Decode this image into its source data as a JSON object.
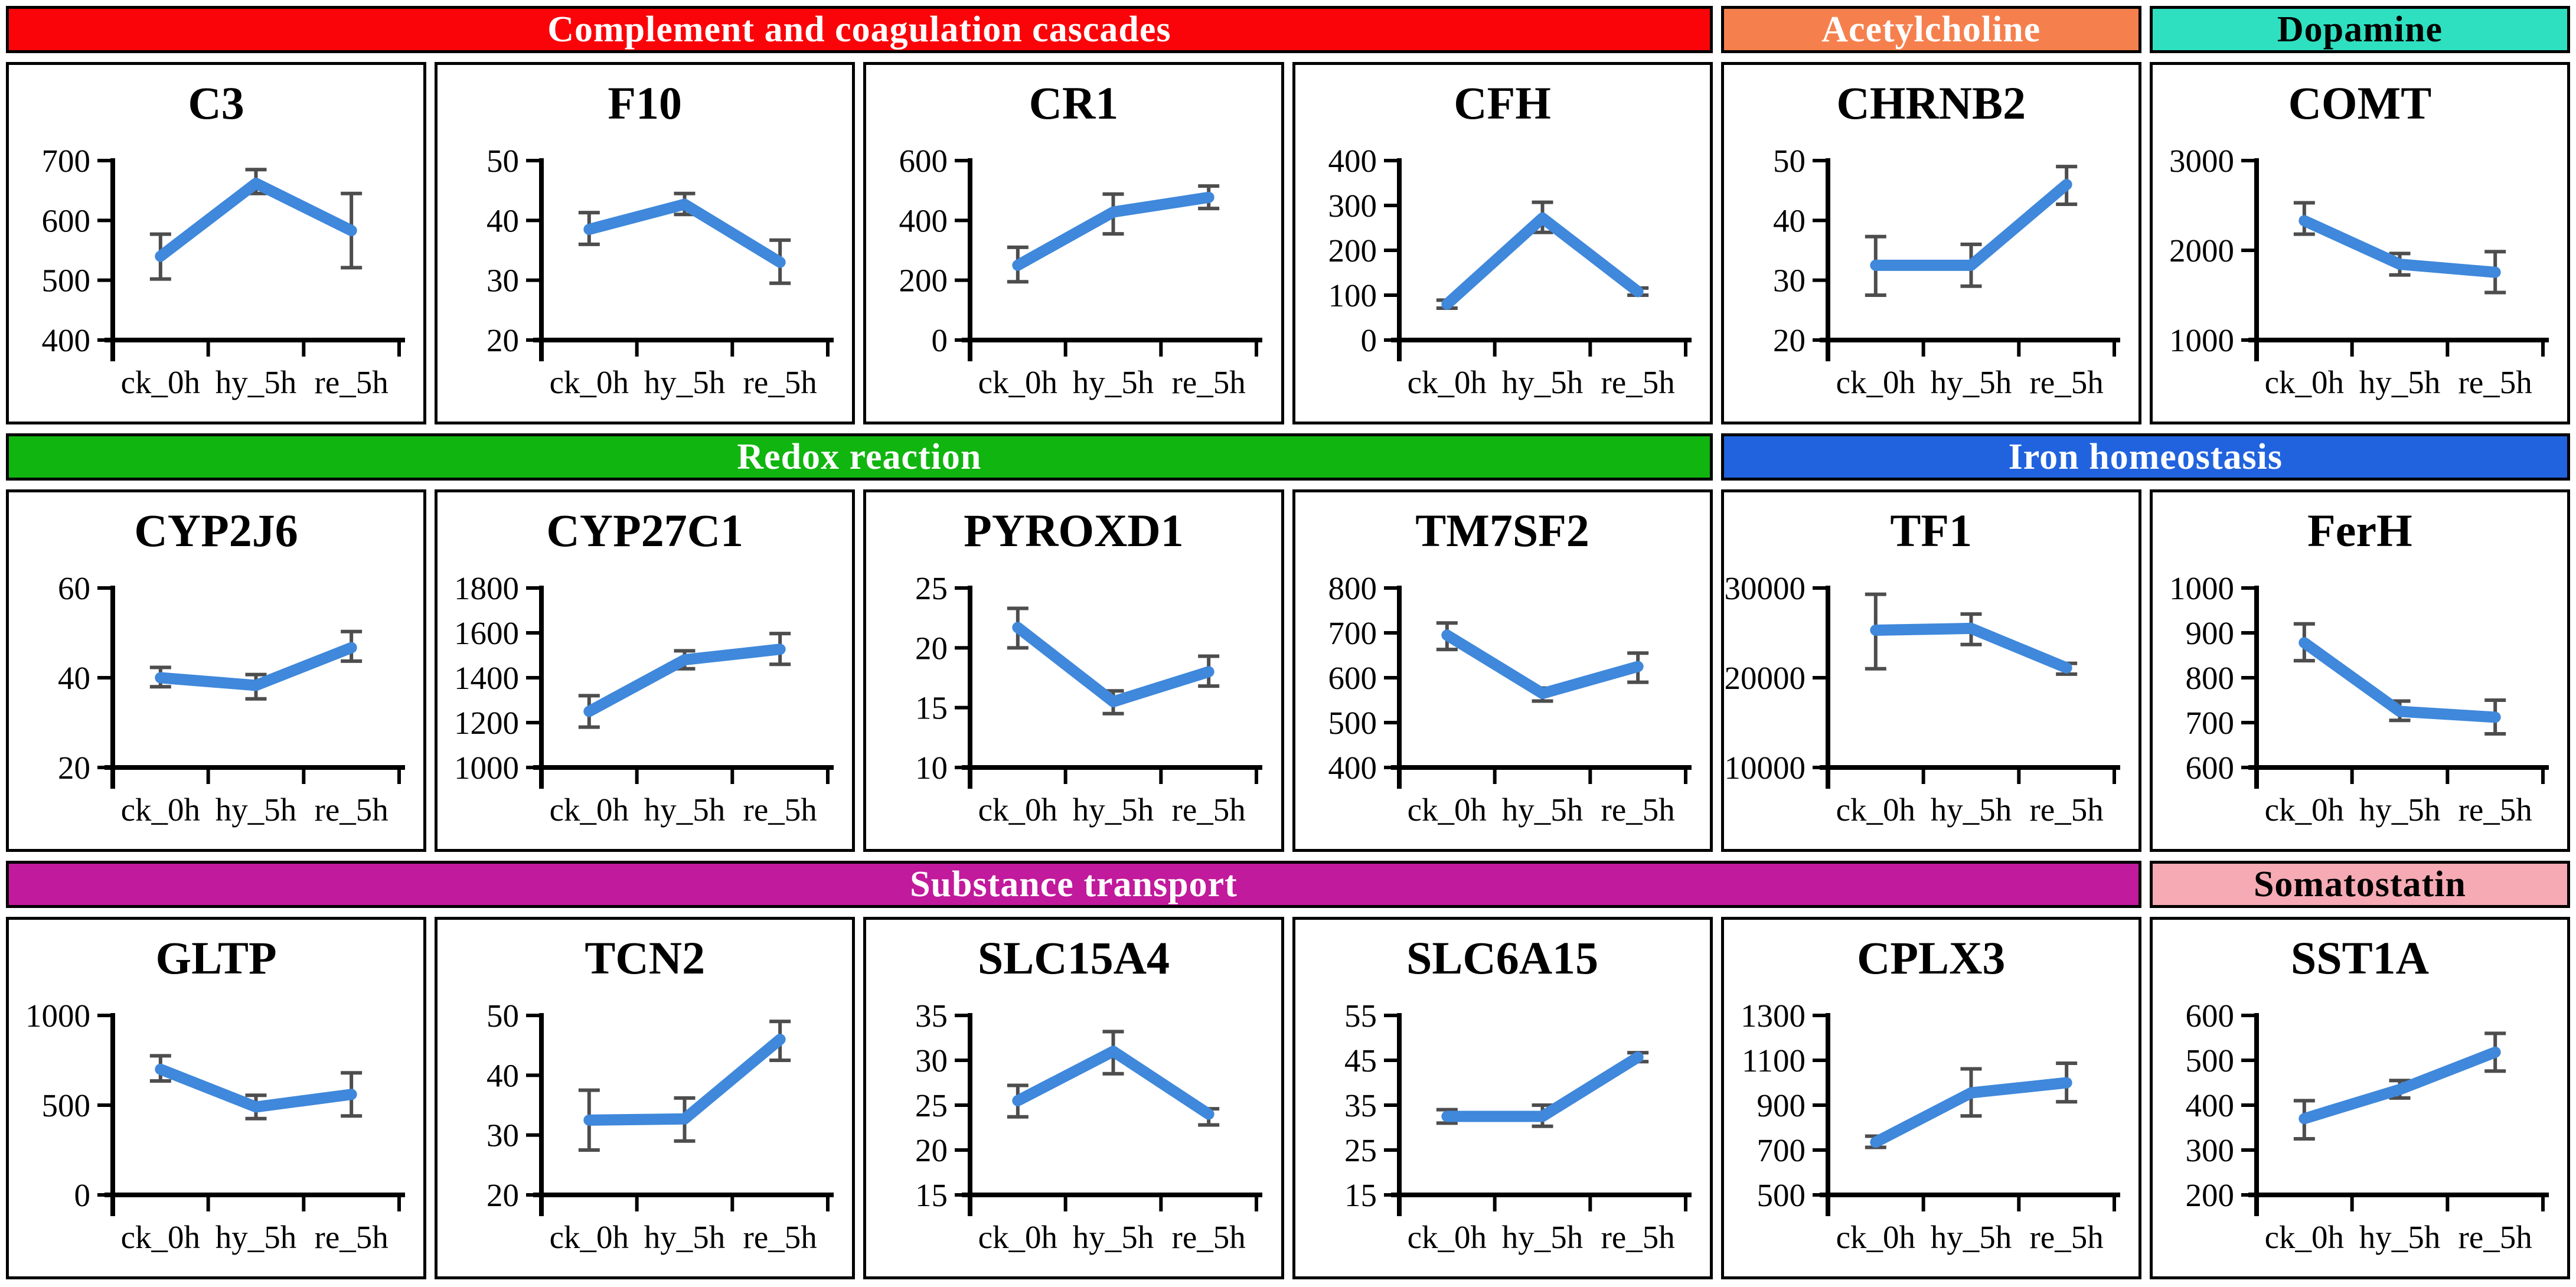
{
  "styles": {
    "background": "#ffffff",
    "line_color": "#3f88db",
    "error_bar_color": "#4d4d4d",
    "axis_color": "#000000",
    "chart_border_color": "#000000"
  },
  "sections": [
    {
      "header": [
        {
          "label": "Complement and coagulation cascades",
          "bg": "#fb0409",
          "text_color": "#ffffff",
          "span": 4
        },
        {
          "label": "Acetylcholine",
          "bg": "#f5804e",
          "text_color": "#ffffff",
          "span": 1
        },
        {
          "label": "Dopamine",
          "bg": "#2ee0c0",
          "text_color": "#000000",
          "span": 1
        }
      ],
      "charts": [
        0,
        1,
        2,
        3,
        4,
        5
      ]
    },
    {
      "header": [
        {
          "label": "Redox reaction",
          "bg": "#10b50f",
          "text_color": "#ffffff",
          "span": 4
        },
        {
          "label": "Iron homeostasis",
          "bg": "#2163de",
          "text_color": "#ffffff",
          "span": 2
        }
      ],
      "charts": [
        6,
        7,
        8,
        9,
        10,
        11
      ]
    },
    {
      "header": [
        {
          "label": "Substance transport",
          "bg": "#c11a9c",
          "text_color": "#ffffff",
          "span": 5
        },
        {
          "label": "Somatostatin",
          "bg": "#f6aab4",
          "text_color": "#000000",
          "span": 1
        }
      ],
      "charts": [
        12,
        13,
        14,
        15,
        16,
        17
      ]
    }
  ],
  "chart_data": [
    {
      "type": "line",
      "title": "C3",
      "xlabel": "",
      "ylabel": "",
      "categories": [
        "ck_0h",
        "hy_5h",
        "re_5h"
      ],
      "values": [
        540,
        662,
        583
      ],
      "error_low": [
        502,
        645,
        521
      ],
      "error_high": [
        577,
        685,
        645
      ],
      "yticks": [
        400,
        500,
        600,
        700
      ],
      "ylim": [
        400,
        700
      ]
    },
    {
      "type": "line",
      "title": "F10",
      "xlabel": "",
      "ylabel": "",
      "categories": [
        "ck_0h",
        "hy_5h",
        "re_5h"
      ],
      "values": [
        38.5,
        42.7,
        33
      ],
      "error_low": [
        36,
        41,
        29.5
      ],
      "error_high": [
        41.3,
        44.5,
        36.7
      ],
      "yticks": [
        20,
        30,
        40,
        50
      ],
      "ylim": [
        20,
        50
      ]
    },
    {
      "type": "line",
      "title": "CR1",
      "xlabel": "",
      "ylabel": "",
      "categories": [
        "ck_0h",
        "hy_5h",
        "re_5h"
      ],
      "values": [
        250,
        428,
        477
      ],
      "error_low": [
        195,
        355,
        440
      ],
      "error_high": [
        310,
        488,
        515
      ],
      "yticks": [
        0,
        200,
        400,
        600
      ],
      "ylim": [
        0,
        600
      ]
    },
    {
      "type": "line",
      "title": "CFH",
      "xlabel": "",
      "ylabel": "",
      "categories": [
        "ck_0h",
        "hy_5h",
        "re_5h"
      ],
      "values": [
        80,
        272,
        108
      ],
      "error_low": [
        71,
        240,
        100
      ],
      "error_high": [
        89,
        307,
        116
      ],
      "yticks": [
        0,
        100,
        200,
        300,
        400
      ],
      "ylim": [
        0,
        400
      ]
    },
    {
      "type": "line",
      "title": "CHRNB2",
      "xlabel": "",
      "ylabel": "",
      "categories": [
        "ck_0h",
        "hy_5h",
        "re_5h"
      ],
      "values": [
        32.5,
        32.5,
        46
      ],
      "error_low": [
        27.5,
        29,
        42.7
      ],
      "error_high": [
        37.3,
        36,
        49
      ],
      "yticks": [
        20,
        30,
        40,
        50
      ],
      "ylim": [
        20,
        50
      ]
    },
    {
      "type": "line",
      "title": "COMT",
      "xlabel": "",
      "ylabel": "",
      "categories": [
        "ck_0h",
        "hy_5h",
        "re_5h"
      ],
      "values": [
        2330,
        1845,
        1755
      ],
      "error_low": [
        2180,
        1725,
        1530
      ],
      "error_high": [
        2530,
        1965,
        1985
      ],
      "yticks": [
        1000,
        2000,
        3000
      ],
      "ylim": [
        1000,
        3000
      ]
    },
    {
      "type": "line",
      "title": "CYP2J6",
      "xlabel": "",
      "ylabel": "",
      "categories": [
        "ck_0h",
        "hy_5h",
        "re_5h"
      ],
      "values": [
        40,
        38.3,
        46.7
      ],
      "error_low": [
        38,
        35.3,
        43.7
      ],
      "error_high": [
        42.3,
        40.7,
        50.3
      ],
      "yticks": [
        20,
        40,
        60
      ],
      "ylim": [
        20,
        60
      ]
    },
    {
      "type": "line",
      "title": "CYP27C1",
      "xlabel": "",
      "ylabel": "",
      "categories": [
        "ck_0h",
        "hy_5h",
        "re_5h"
      ],
      "values": [
        1250,
        1480,
        1527
      ],
      "error_low": [
        1180,
        1440,
        1460
      ],
      "error_high": [
        1320,
        1520,
        1597
      ],
      "yticks": [
        1000,
        1200,
        1400,
        1600,
        1800
      ],
      "ylim": [
        1000,
        1800
      ]
    },
    {
      "type": "line",
      "title": "PYROXD1",
      "xlabel": "",
      "ylabel": "",
      "categories": [
        "ck_0h",
        "hy_5h",
        "re_5h"
      ],
      "values": [
        21.7,
        15.5,
        18
      ],
      "error_low": [
        20,
        14.5,
        16.8
      ],
      "error_high": [
        23.3,
        16.4,
        19.3
      ],
      "yticks": [
        10,
        15,
        20,
        25
      ],
      "ylim": [
        10,
        25
      ]
    },
    {
      "type": "line",
      "title": "TM7SF2",
      "xlabel": "",
      "ylabel": "",
      "categories": [
        "ck_0h",
        "hy_5h",
        "re_5h"
      ],
      "values": [
        695,
        565,
        625
      ],
      "error_low": [
        663,
        548,
        590
      ],
      "error_high": [
        722,
        577,
        655
      ],
      "yticks": [
        400,
        500,
        600,
        700,
        800
      ],
      "ylim": [
        400,
        800
      ]
    },
    {
      "type": "line",
      "title": "TF1",
      "xlabel": "",
      "ylabel": "",
      "categories": [
        "ck_0h",
        "hy_5h",
        "re_5h"
      ],
      "values": [
        25300,
        25500,
        21100
      ],
      "error_low": [
        21000,
        23700,
        20400
      ],
      "error_high": [
        29300,
        27100,
        21600
      ],
      "yticks": [
        10000,
        20000,
        30000
      ],
      "ylim": [
        10000,
        30000
      ]
    },
    {
      "type": "line",
      "title": "FerH",
      "xlabel": "",
      "ylabel": "",
      "categories": [
        "ck_0h",
        "hy_5h",
        "re_5h"
      ],
      "values": [
        878,
        725,
        712
      ],
      "error_low": [
        838,
        705,
        675
      ],
      "error_high": [
        920,
        748,
        750
      ],
      "yticks": [
        600,
        700,
        800,
        900,
        1000
      ],
      "ylim": [
        600,
        1000
      ]
    },
    {
      "type": "line",
      "title": "GLTP",
      "xlabel": "",
      "ylabel": "",
      "categories": [
        "ck_0h",
        "hy_5h",
        "re_5h"
      ],
      "values": [
        700,
        490,
        560
      ],
      "error_low": [
        635,
        425,
        440
      ],
      "error_high": [
        775,
        555,
        680
      ],
      "yticks": [
        0,
        500,
        1000
      ],
      "ylim": [
        0,
        1000
      ]
    },
    {
      "type": "line",
      "title": "TCN2",
      "xlabel": "",
      "ylabel": "",
      "categories": [
        "ck_0h",
        "hy_5h",
        "re_5h"
      ],
      "values": [
        32.5,
        32.7,
        46
      ],
      "error_low": [
        27.5,
        29,
        42.5
      ],
      "error_high": [
        37.5,
        36.2,
        49
      ],
      "yticks": [
        20,
        30,
        40,
        50
      ],
      "ylim": [
        20,
        50
      ]
    },
    {
      "type": "line",
      "title": "SLC15A4",
      "xlabel": "",
      "ylabel": "",
      "categories": [
        "ck_0h",
        "hy_5h",
        "re_5h"
      ],
      "values": [
        25.5,
        31,
        24
      ],
      "error_low": [
        23.7,
        28.5,
        22.8
      ],
      "error_high": [
        27.2,
        33.2,
        24.6
      ],
      "yticks": [
        15,
        20,
        25,
        30,
        35
      ],
      "ylim": [
        15,
        35
      ]
    },
    {
      "type": "line",
      "title": "SLC6A15",
      "xlabel": "",
      "ylabel": "",
      "categories": [
        "ck_0h",
        "hy_5h",
        "re_5h"
      ],
      "values": [
        32.5,
        32.5,
        45.7
      ],
      "error_low": [
        31,
        30.3,
        44.7
      ],
      "error_high": [
        34,
        35,
        46.7
      ],
      "yticks": [
        15,
        25,
        35,
        45,
        55
      ],
      "ylim": [
        15,
        55
      ]
    },
    {
      "type": "line",
      "title": "CPLX3",
      "xlabel": "",
      "ylabel": "",
      "categories": [
        "ck_0h",
        "hy_5h",
        "re_5h"
      ],
      "values": [
        735,
        955,
        1000
      ],
      "error_low": [
        712,
        852,
        915
      ],
      "error_high": [
        762,
        1062,
        1087
      ],
      "yticks": [
        500,
        700,
        900,
        1100,
        1300
      ],
      "ylim": [
        500,
        1300
      ]
    },
    {
      "type": "line",
      "title": "SST1A",
      "xlabel": "",
      "ylabel": "",
      "categories": [
        "ck_0h",
        "hy_5h",
        "re_5h"
      ],
      "values": [
        370,
        435,
        518
      ],
      "error_low": [
        325,
        416,
        476
      ],
      "error_high": [
        410,
        455,
        560
      ],
      "yticks": [
        200,
        300,
        400,
        500,
        600
      ],
      "ylim": [
        200,
        600
      ]
    }
  ]
}
